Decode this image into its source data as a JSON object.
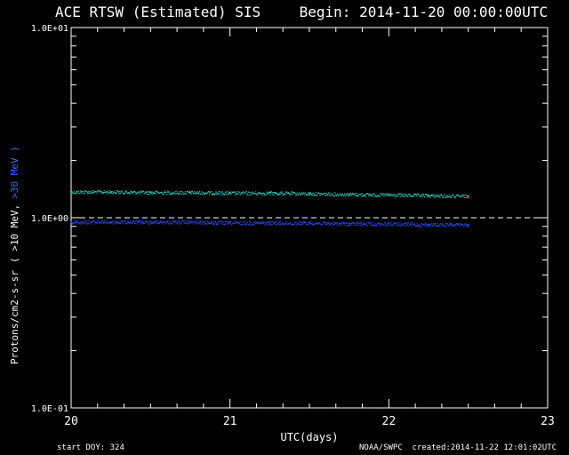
{
  "chart_data": {
    "type": "scatter",
    "title": "ACE RTSW (Estimated) SIS",
    "subtitle": "Begin: 2014-11-20 00:00:00UTC",
    "xlabel": "UTC(days)",
    "ylabel": "Protons/cm2-s-sr",
    "ylabel_series": [
      "( >10 MeV,",
      ">30 MeV )"
    ],
    "x_ticks": [
      "20",
      "21",
      "22",
      "23"
    ],
    "xlim": [
      20,
      23
    ],
    "y_ticks": [
      "1.0E-01",
      "1.0E+00",
      "1.0E+01"
    ],
    "ylim": [
      0.1,
      10
    ],
    "yscale": "log",
    "threshold": 1.0,
    "colors": {
      "gt10": "#30d8c8",
      "gt30": "#2a50ff",
      "axes": "#ffffff",
      "background": "#000000"
    },
    "series": [
      {
        "name": ">10 MeV",
        "x": [
          20.0,
          20.25,
          20.5,
          20.75,
          21.0,
          21.25,
          21.5,
          21.75,
          22.0,
          22.25,
          22.5
        ],
        "values": [
          1.37,
          1.37,
          1.36,
          1.36,
          1.35,
          1.35,
          1.34,
          1.33,
          1.32,
          1.31,
          1.3
        ]
      },
      {
        "name": ">30 MeV",
        "x": [
          20.0,
          20.25,
          20.5,
          20.75,
          21.0,
          21.25,
          21.5,
          21.75,
          22.0,
          22.25,
          22.5
        ],
        "values": [
          0.95,
          0.95,
          0.95,
          0.95,
          0.94,
          0.94,
          0.94,
          0.93,
          0.93,
          0.92,
          0.92
        ]
      }
    ]
  },
  "footer": {
    "start_doy": "start DOY:  324",
    "source": "NOAA/SWPC",
    "created": "created:2014-11-22 12:01:02UTC"
  }
}
